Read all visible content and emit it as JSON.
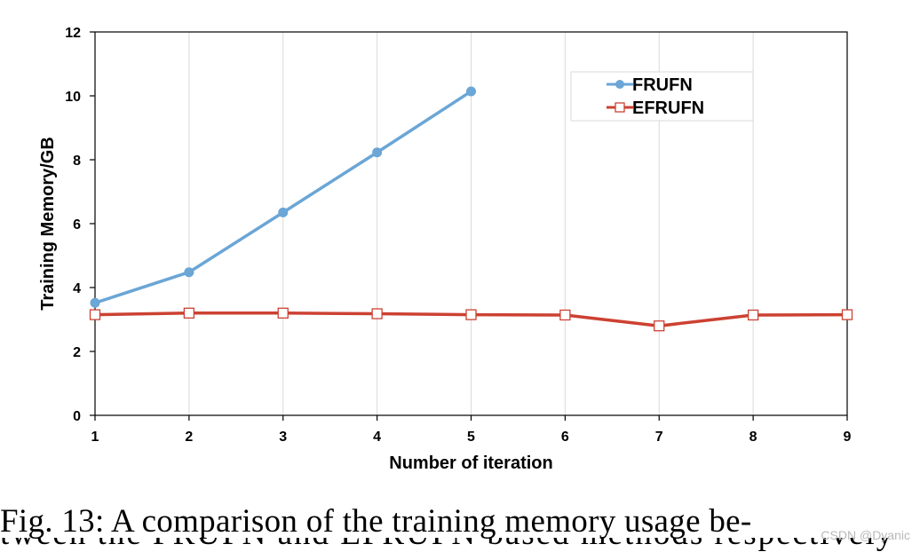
{
  "chart_data": {
    "type": "line",
    "x": [
      1,
      2,
      3,
      4,
      5,
      6,
      7,
      8,
      9
    ],
    "xlabel": "Number of iteration",
    "ylabel": "Training Memory/GB",
    "xlim": [
      1,
      9
    ],
    "ylim": [
      0,
      12
    ],
    "yticks": [
      0,
      2,
      4,
      6,
      8,
      10,
      12
    ],
    "grid": "vertical",
    "legend_position": "top-right",
    "series": [
      {
        "name": "FRUFN",
        "color": "#6aa6d6",
        "marker": "filled-circle",
        "x": [
          1,
          2,
          3,
          4,
          5
        ],
        "values": [
          3.52,
          4.48,
          6.35,
          8.23,
          10.14
        ]
      },
      {
        "name": "EFRUFN",
        "color": "#cc4132",
        "marker": "open-square",
        "x": [
          1,
          2,
          3,
          4,
          5,
          6,
          7,
          8,
          9
        ],
        "values": [
          3.15,
          3.2,
          3.2,
          3.18,
          3.15,
          3.14,
          2.8,
          3.14,
          3.15
        ]
      }
    ]
  },
  "caption": {
    "line1": "Fig. 13: A comparison of the training memory usage be-",
    "line2": "tween the FRUFN and EFRUFN based methods respectively"
  },
  "watermark": "CSDN @Dyanic"
}
